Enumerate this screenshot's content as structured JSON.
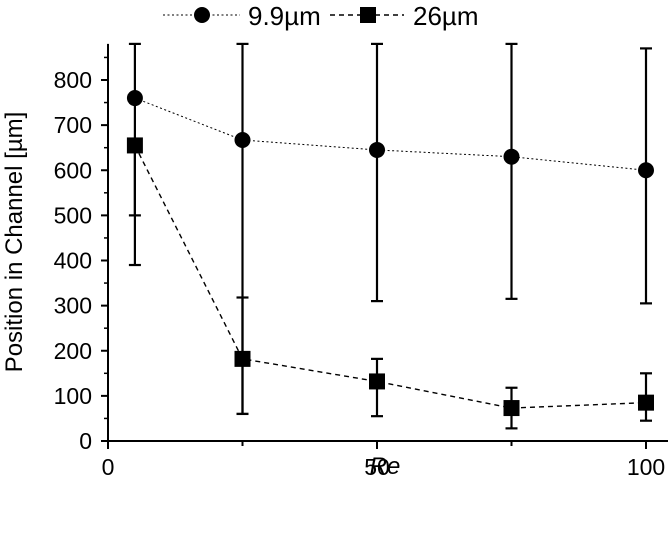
{
  "chart_data": {
    "type": "line",
    "xlabel": "Re",
    "ylabel": "Position in Channel [µm]",
    "xlim": [
      0,
      100
    ],
    "ylim": [
      0,
      880
    ],
    "x_ticks": [
      0,
      50,
      100
    ],
    "y_ticks": [
      0,
      100,
      200,
      300,
      400,
      500,
      600,
      700,
      800
    ],
    "grid": false,
    "legend_position": "top",
    "series": [
      {
        "name": "9.9µm",
        "marker": "circle",
        "line": "dotted",
        "color": "#000000",
        "x": [
          5,
          25,
          50,
          75,
          100
        ],
        "y": [
          760,
          667,
          645,
          630,
          600
        ],
        "err_upper": [
          880,
          880,
          880,
          880,
          870
        ],
        "err_lower": [
          390,
          60,
          310,
          315,
          305
        ]
      },
      {
        "name": "26µm",
        "marker": "square",
        "line": "dashed",
        "color": "#000000",
        "x": [
          5,
          25,
          50,
          75,
          100
        ],
        "y": [
          655,
          182,
          132,
          73,
          85
        ],
        "err_upper": [
          655,
          318,
          182,
          118,
          150
        ],
        "err_lower": [
          500,
          60,
          55,
          28,
          45
        ]
      }
    ]
  }
}
